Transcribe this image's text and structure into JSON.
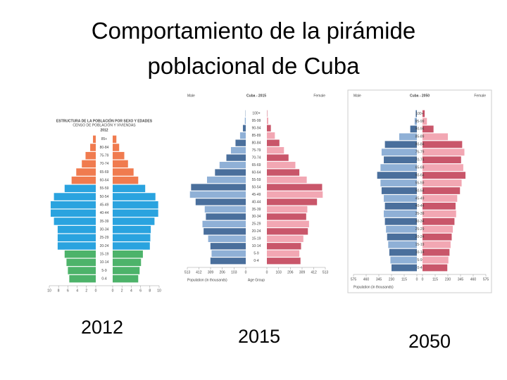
{
  "title": "Comportamiento de la pirámide poblacional de Cuba",
  "chart_data": [
    {
      "type": "pyramid",
      "title": "ESTRUCTURA DE LA POBLACIÓN POR SEXO Y EDADES",
      "subtitle": "CENSO DE POBLACIÓN Y VIVIENDAS",
      "year": "2012",
      "caption": "2012",
      "categories": [
        "0-4",
        "5-9",
        "10-14",
        "15-19",
        "20-24",
        "25-29",
        "30-34",
        "35-39",
        "40-44",
        "45-49",
        "50-54",
        "55-59",
        "60-64",
        "65-69",
        "70-74",
        "75-79",
        "80-84",
        "85+"
      ],
      "series": [
        {
          "name": "Hombres",
          "colors": [
            "#4db36a",
            "#4db36a",
            "#4db36a",
            "#4db36a",
            "#2aa3df",
            "#2aa3df",
            "#2aa3df",
            "#2aa3df",
            "#2aa3df",
            "#2aa3df",
            "#2aa3df",
            "#2aa3df",
            "#f07b4f",
            "#f07b4f",
            "#f07b4f",
            "#f07b4f",
            "#f07b4f",
            "#f07b4f"
          ],
          "values": [
            5.7,
            6,
            6.3,
            6.7,
            8.2,
            8.2,
            8.2,
            9,
            9.7,
            9.7,
            9,
            6.7,
            5.2,
            4.2,
            3,
            2.2,
            1.2,
            0.6
          ]
        },
        {
          "name": "Mujeres",
          "colors": [
            "#4db36a",
            "#4db36a",
            "#4db36a",
            "#4db36a",
            "#2aa3df",
            "#2aa3df",
            "#2aa3df",
            "#2aa3df",
            "#2aa3df",
            "#2aa3df",
            "#2aa3df",
            "#2aa3df",
            "#f07b4f",
            "#f07b4f",
            "#f07b4f",
            "#f07b4f",
            "#f07b4f",
            "#f07b4f"
          ],
          "values": [
            5.5,
            5.8,
            6.1,
            6.5,
            8,
            8.1,
            8.2,
            9,
            9.8,
            9.8,
            9.2,
            7,
            5.5,
            4.5,
            3.3,
            2.5,
            1.4,
            0.8
          ]
        }
      ],
      "xlim": [
        0,
        10
      ],
      "xticks": [
        0,
        2,
        4,
        6,
        8,
        10
      ]
    },
    {
      "type": "pyramid",
      "title": "Cuba - 2015",
      "left_label": "Male",
      "right_label": "Female",
      "xlabel": "Population (in thousands)",
      "center_label": "Age Group",
      "caption": "2015",
      "categories": [
        "0-4",
        "5-9",
        "10-14",
        "15-19",
        "20-24",
        "25-29",
        "30-34",
        "35-39",
        "40-44",
        "45-49",
        "50-54",
        "55-59",
        "60-64",
        "65-69",
        "70-74",
        "75-79",
        "80-84",
        "85-89",
        "90-94",
        "95-99",
        "100+"
      ],
      "series": [
        {
          "name": "Male",
          "colors": [
            "#4a6f9c",
            "#8fb0d6"
          ],
          "values": [
            310,
            300,
            310,
            330,
            370,
            380,
            350,
            360,
            440,
            490,
            480,
            340,
            270,
            230,
            170,
            130,
            90,
            50,
            25,
            8,
            2
          ]
        },
        {
          "name": "Female",
          "colors": [
            "#c9566a",
            "#f2a7b3"
          ],
          "values": [
            295,
            285,
            300,
            320,
            360,
            370,
            345,
            355,
            440,
            490,
            485,
            350,
            285,
            250,
            190,
            150,
            110,
            70,
            35,
            12,
            3
          ]
        }
      ],
      "xlim": [
        0,
        513
      ],
      "xticks": [
        0,
        103,
        206,
        309,
        412,
        513
      ]
    },
    {
      "type": "pyramid",
      "title": "Cuba - 2050",
      "left_label": "Male",
      "right_label": "Female",
      "xlabel": "Population (in thousands)",
      "caption": "2050",
      "categories": [
        "0-4",
        "5-9",
        "10-14",
        "15-19",
        "20-24",
        "25-29",
        "30-34",
        "35-39",
        "40-44",
        "45-49",
        "50-54",
        "55-59",
        "60-64",
        "65-69",
        "70-74",
        "75-79",
        "80-84",
        "85-89",
        "90-94",
        "95-99",
        "100+"
      ],
      "series": [
        {
          "name": "Male",
          "colors": [
            "#4a6f9c",
            "#8fb0d6"
          ],
          "values": [
            230,
            240,
            250,
            260,
            270,
            280,
            290,
            300,
            290,
            300,
            320,
            330,
            360,
            330,
            300,
            320,
            290,
            160,
            60,
            20,
            10
          ]
        },
        {
          "name": "Female",
          "colors": [
            "#c9566a",
            "#f2a7b3"
          ],
          "values": [
            225,
            235,
            245,
            255,
            265,
            275,
            290,
            305,
            300,
            315,
            340,
            355,
            390,
            370,
            350,
            380,
            360,
            230,
            100,
            40,
            20
          ]
        }
      ],
      "xlim": [
        0,
        575
      ],
      "xticks": [
        0,
        115,
        230,
        345,
        460,
        575
      ]
    }
  ]
}
